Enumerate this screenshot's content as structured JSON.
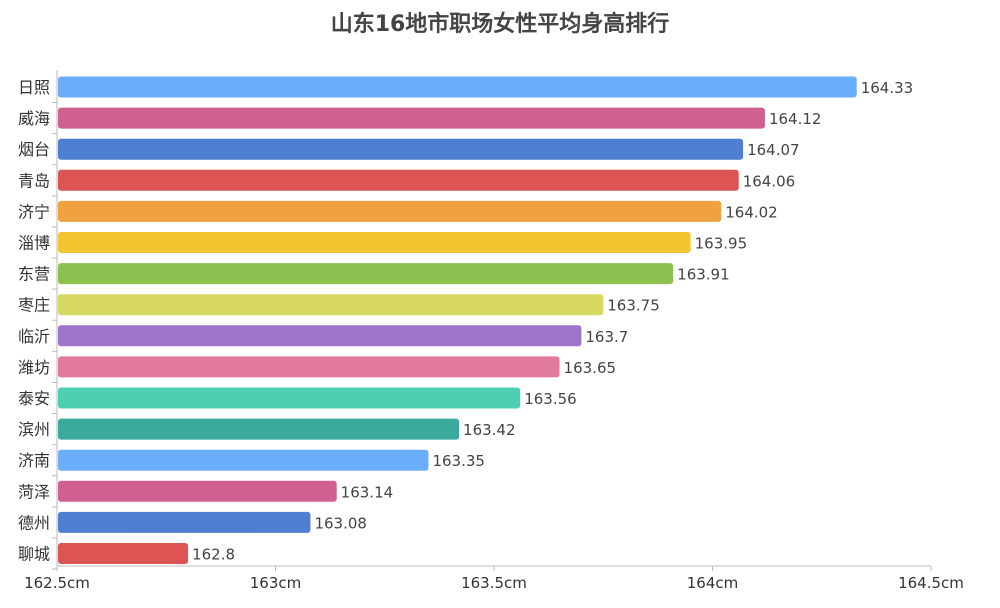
{
  "chart_data": {
    "type": "bar",
    "orientation": "horizontal",
    "title": "山东16地市职场女性平均身高排行",
    "xlabel": "",
    "ylabel": "",
    "xlim": [
      162.5,
      164.5
    ],
    "x_ticks": [
      162.5,
      163,
      163.5,
      164,
      164.5
    ],
    "x_tick_labels": [
      "162.5cm",
      "163cm",
      "163.5cm",
      "164cm",
      "164.5cm"
    ],
    "grid": false,
    "legend": "none",
    "categories": [
      "日照",
      "威海",
      "烟台",
      "青岛",
      "济宁",
      "淄博",
      "东营",
      "枣庄",
      "临沂",
      "潍坊",
      "泰安",
      "滨州",
      "济南",
      "菏泽",
      "德州",
      "聊城"
    ],
    "values": [
      164.33,
      164.12,
      164.07,
      164.06,
      164.02,
      163.95,
      163.91,
      163.75,
      163.7,
      163.65,
      163.56,
      163.42,
      163.35,
      163.14,
      163.08,
      162.8
    ],
    "value_labels": [
      "164.33",
      "164.12",
      "164.07",
      "164.06",
      "164.02",
      "163.95",
      "163.91",
      "163.75",
      "163.7",
      "163.65",
      "163.56",
      "163.42",
      "163.35",
      "163.14",
      "163.08",
      "162.8"
    ],
    "colors": [
      "#6aaefb",
      "#d0608f",
      "#4f7fd0",
      "#dc5454",
      "#f0a240",
      "#f3c631",
      "#8ec050",
      "#d6d860",
      "#9f75cc",
      "#e27aa0",
      "#4ecfb2",
      "#3aaa9c",
      "#6aaefb",
      "#d0608f",
      "#4f7fd0",
      "#dc5454"
    ]
  }
}
